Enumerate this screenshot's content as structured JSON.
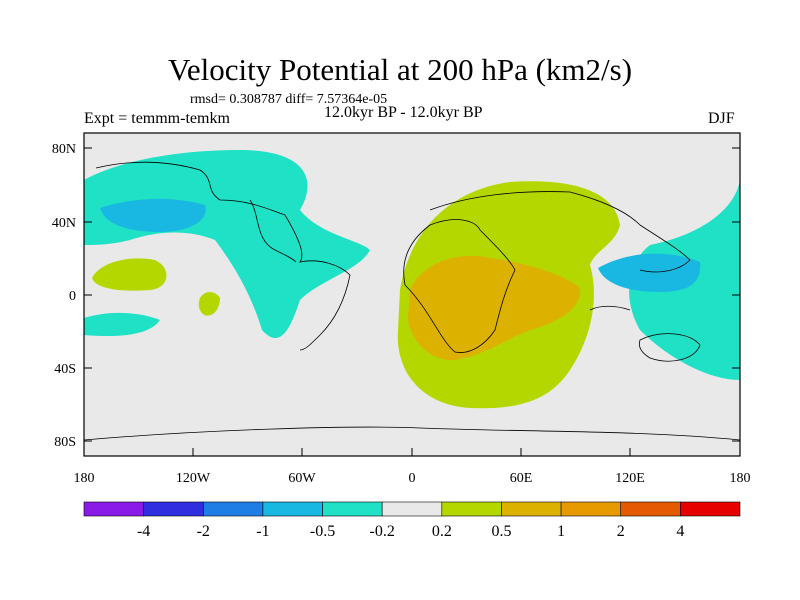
{
  "title": "Velocity Potential at 200 hPa (km2/s)",
  "stats": "rmsd= 0.308787 diff= 7.57364e-05",
  "left_label": "Expt = temmm-temkm",
  "center_label": "12.0kyr BP - 12.0kyr BP",
  "right_label": "DJF",
  "map": {
    "lat_ticks": [
      "80N",
      "40N",
      "0",
      "40S",
      "80S"
    ],
    "lon_ticks": [
      "180",
      "120W",
      "60W",
      "0",
      "60E",
      "120E",
      "180"
    ]
  },
  "colorbar": {
    "colors": [
      "#8a1ae8",
      "#2f2fe0",
      "#1f7ee6",
      "#19b8e3",
      "#1fe1c6",
      "#e9e9e9",
      "#b5d700",
      "#dcb100",
      "#e69a00",
      "#e45a00",
      "#e60000"
    ],
    "labels": [
      "-4",
      "-2",
      "-1",
      "-0.5",
      "-0.2",
      "0.2",
      "0.5",
      "1",
      "2",
      "4"
    ]
  },
  "colors": {
    "background": "#e9e9e9",
    "ocean_land_outline": "#000000"
  }
}
